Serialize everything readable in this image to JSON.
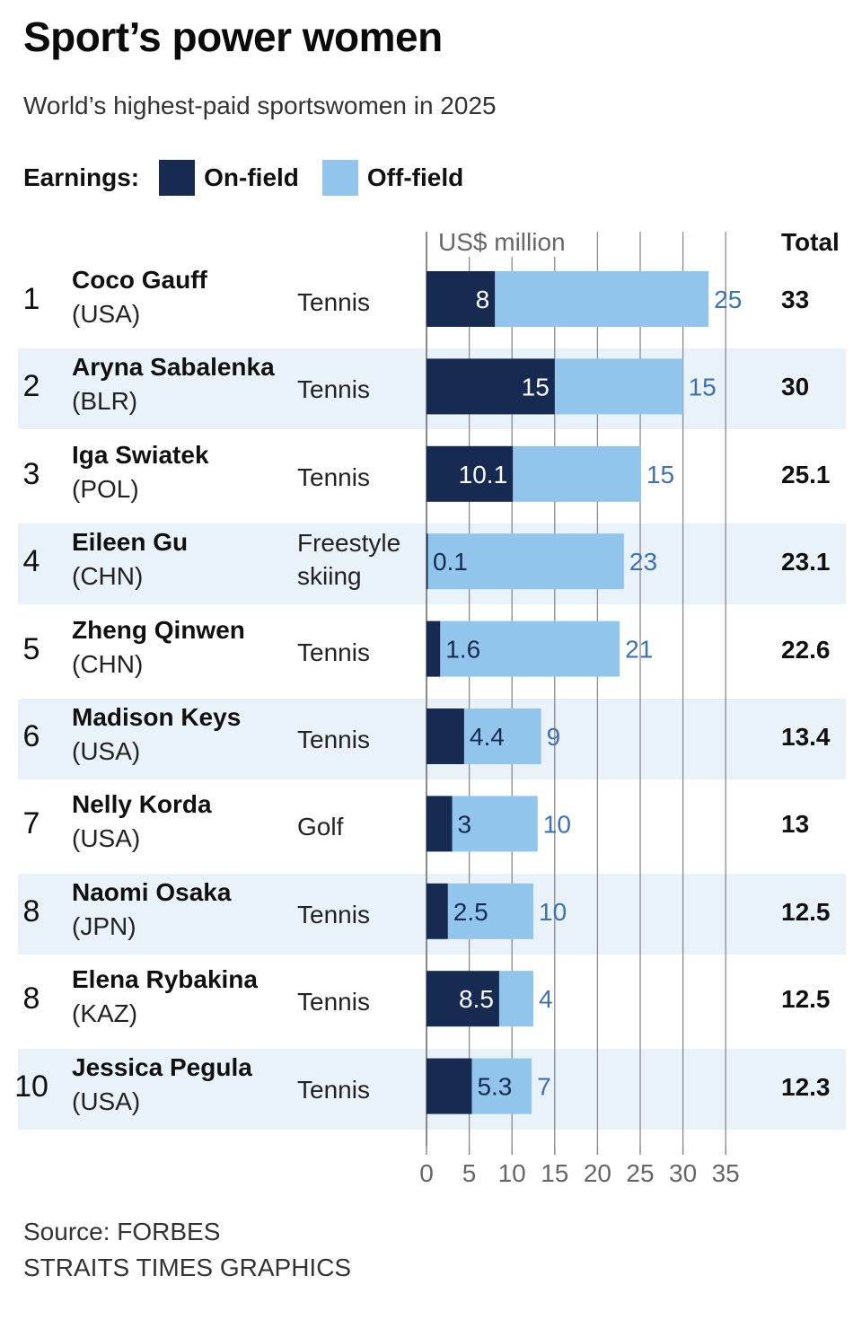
{
  "header": {
    "title": "Sport’s power women",
    "subtitle": "World’s highest-paid sportswomen in 2025"
  },
  "legend": {
    "title": "Earnings:",
    "on_label": "On-field",
    "off_label": "Off-field"
  },
  "colors": {
    "on_field": "#172b52",
    "off_field": "#92c5ec",
    "row_band": "#eaf2f9",
    "off_value_text": "#3d72b0",
    "grid": "#8a8a8a"
  },
  "axis": {
    "unit_label": "US$ million",
    "total_label": "Total"
  },
  "rows": [
    {
      "rank": "1",
      "name": "Coco Gauff",
      "country": "(USA)",
      "sport": "Tennis",
      "on_label": "8",
      "off_label": "25",
      "total": "33"
    },
    {
      "rank": "2",
      "name": "Aryna Sabalenka",
      "country": "(BLR)",
      "sport": "Tennis",
      "on_label": "15",
      "off_label": "15",
      "total": "30"
    },
    {
      "rank": "3",
      "name": "Iga Swiatek",
      "country": "(POL)",
      "sport": "Tennis",
      "on_label": "10.1",
      "off_label": "15",
      "total": "25.1"
    },
    {
      "rank": "4",
      "name": "Eileen Gu",
      "country": "(CHN)",
      "sport": "Freestyle skiing",
      "on_label": "0.1",
      "off_label": "23",
      "total": "23.1"
    },
    {
      "rank": "5",
      "name": "Zheng Qinwen",
      "country": "(CHN)",
      "sport": "Tennis",
      "on_label": "1.6",
      "off_label": "21",
      "total": "22.6"
    },
    {
      "rank": "6",
      "name": "Madison Keys",
      "country": "(USA)",
      "sport": "Tennis",
      "on_label": "4.4",
      "off_label": "9",
      "total": "13.4"
    },
    {
      "rank": "7",
      "name": "Nelly Korda",
      "country": "(USA)",
      "sport": "Golf",
      "on_label": "3",
      "off_label": "10",
      "total": "13"
    },
    {
      "rank": "8",
      "name": "Naomi Osaka",
      "country": "(JPN)",
      "sport": "Tennis",
      "on_label": "2.5",
      "off_label": "10",
      "total": "12.5"
    },
    {
      "rank": "8",
      "name": "Elena Rybakina",
      "country": "(KAZ)",
      "sport": "Tennis",
      "on_label": "8.5",
      "off_label": "4",
      "total": "12.5"
    },
    {
      "rank": "10",
      "name": "Jessica Pegula",
      "country": "(USA)",
      "sport": "Tennis",
      "on_label": "5.3",
      "off_label": "7",
      "total": "12.3"
    }
  ],
  "footer": {
    "source": "Source: FORBES",
    "credit": "STRAITS TIMES GRAPHICS"
  },
  "chart_data": {
    "type": "bar",
    "orientation": "horizontal",
    "stacked": true,
    "title": "Sport’s power women",
    "subtitle": "World’s highest-paid sportswomen in 2025",
    "xlabel": "US$ million",
    "xlim": [
      0,
      35
    ],
    "x_ticks": [
      0,
      5,
      10,
      15,
      20,
      25,
      30,
      35
    ],
    "x_tick_labels": [
      "0",
      "5",
      "10",
      "15",
      "20",
      "25",
      "30",
      "35"
    ],
    "grid": true,
    "legend": {
      "position": "top-left",
      "entries": [
        "On-field",
        "Off-field"
      ]
    },
    "categories": [
      "Coco Gauff",
      "Aryna Sabalenka",
      "Iga Swiatek",
      "Eileen Gu",
      "Zheng Qinwen",
      "Madison Keys",
      "Nelly Korda",
      "Naomi Osaka",
      "Elena Rybakina",
      "Jessica Pegula"
    ],
    "series": [
      {
        "name": "On-field",
        "values": [
          8,
          15,
          10.1,
          0.1,
          1.6,
          4.4,
          3,
          2.5,
          8.5,
          5.3
        ]
      },
      {
        "name": "Off-field",
        "values": [
          25,
          15,
          15,
          23,
          21,
          9,
          10,
          10,
          4,
          7
        ]
      }
    ],
    "totals": [
      33,
      30,
      25.1,
      23.1,
      22.6,
      13.4,
      13,
      12.5,
      12.5,
      12.3
    ]
  }
}
